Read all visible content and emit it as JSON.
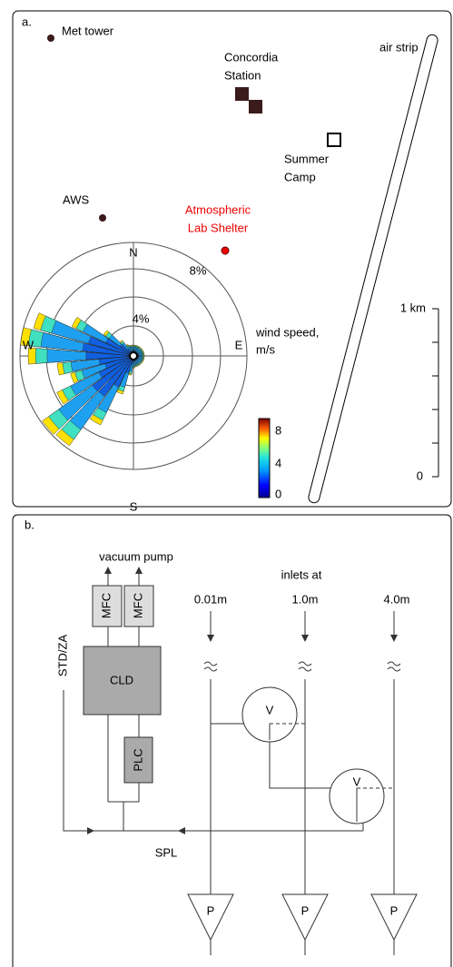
{
  "panel_a": {
    "label": "a.",
    "places": {
      "met_tower": "Met tower",
      "concordia": [
        "Concordia",
        "Station"
      ],
      "summer_camp": [
        "Summer",
        "Camp"
      ],
      "air_strip": "air strip",
      "aws": "AWS",
      "lab_shelter": [
        "Atmospheric",
        "Lab Shelter"
      ]
    },
    "wind_rose": {
      "directions": {
        "north": "N",
        "east": "E",
        "south": "S",
        "west": "W"
      },
      "ring_labels": [
        "4%",
        "8%"
      ],
      "legend_title": [
        "wind speed,",
        "m/s"
      ],
      "colorbar_ticks": [
        "8",
        "4",
        "0"
      ]
    },
    "scale_bar": {
      "top": "1 km",
      "bottom": "0"
    }
  },
  "panel_b": {
    "label": "b.",
    "vacuum_pump": "vacuum pump",
    "mfc": [
      "MFC",
      "MFC"
    ],
    "cld": "CLD",
    "plc": "PLC",
    "std_za": "STD/ZA",
    "spl": "SPL",
    "inlets_title": "inlets at",
    "inlets": [
      "0.01m",
      "1.0m",
      "4.0m"
    ],
    "valves": [
      "V",
      "V"
    ],
    "pumps": [
      "P",
      "P",
      "P"
    ]
  }
}
